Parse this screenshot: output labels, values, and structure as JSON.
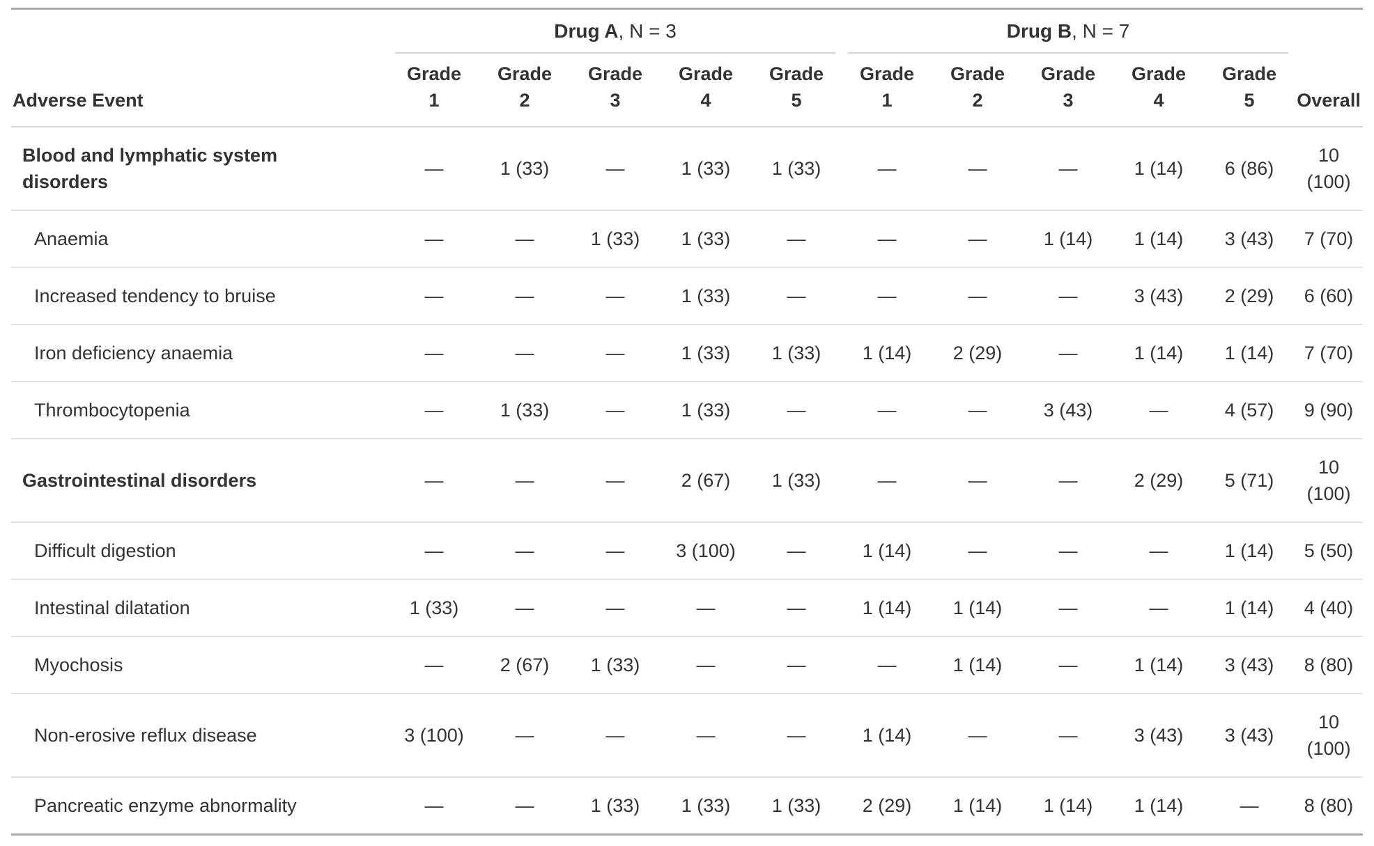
{
  "table": {
    "header": {
      "stub_label": "Adverse Event",
      "overall_label": "Overall",
      "grade_word": "Grade",
      "grade_numbers": [
        "1",
        "2",
        "3",
        "4",
        "5",
        "1",
        "2",
        "3",
        "4",
        "5"
      ],
      "spanners": [
        {
          "name": "Drug A",
          "suffix": ", N = 3"
        },
        {
          "name": "Drug B",
          "suffix": ", N = 7"
        }
      ]
    },
    "empty_cell_symbol": "—",
    "rows": [
      {
        "label": "Blood and lymphatic system disorders",
        "group": true,
        "drug_a": [
          "—",
          "1 (33)",
          "—",
          "1 (33)",
          "1 (33)"
        ],
        "drug_b": [
          "—",
          "—",
          "—",
          "1 (14)",
          "6 (86)"
        ],
        "overall": "10 (100)"
      },
      {
        "label": "Anaemia",
        "group": false,
        "drug_a": [
          "—",
          "—",
          "1 (33)",
          "1 (33)",
          "—"
        ],
        "drug_b": [
          "—",
          "—",
          "1 (14)",
          "1 (14)",
          "3 (43)"
        ],
        "overall": "7 (70)"
      },
      {
        "label": "Increased tendency to bruise",
        "group": false,
        "drug_a": [
          "—",
          "—",
          "—",
          "1 (33)",
          "—"
        ],
        "drug_b": [
          "—",
          "—",
          "—",
          "3 (43)",
          "2 (29)"
        ],
        "overall": "6 (60)"
      },
      {
        "label": "Iron deficiency anaemia",
        "group": false,
        "drug_a": [
          "—",
          "—",
          "—",
          "1 (33)",
          "1 (33)"
        ],
        "drug_b": [
          "1 (14)",
          "2 (29)",
          "—",
          "1 (14)",
          "1 (14)"
        ],
        "overall": "7 (70)"
      },
      {
        "label": "Thrombocytopenia",
        "group": false,
        "drug_a": [
          "—",
          "1 (33)",
          "—",
          "1 (33)",
          "—"
        ],
        "drug_b": [
          "—",
          "—",
          "3 (43)",
          "—",
          "4 (57)"
        ],
        "overall": "9 (90)"
      },
      {
        "label": "Gastrointestinal disorders",
        "group": true,
        "drug_a": [
          "—",
          "—",
          "—",
          "2 (67)",
          "1 (33)"
        ],
        "drug_b": [
          "—",
          "—",
          "—",
          "2 (29)",
          "5 (71)"
        ],
        "overall": "10 (100)"
      },
      {
        "label": "Difficult digestion",
        "group": false,
        "drug_a": [
          "—",
          "—",
          "—",
          "3 (100)",
          "—"
        ],
        "drug_b": [
          "1 (14)",
          "—",
          "—",
          "—",
          "1 (14)"
        ],
        "overall": "5 (50)"
      },
      {
        "label": "Intestinal dilatation",
        "group": false,
        "drug_a": [
          "1 (33)",
          "—",
          "—",
          "—",
          "—"
        ],
        "drug_b": [
          "1 (14)",
          "1 (14)",
          "—",
          "—",
          "1 (14)"
        ],
        "overall": "4 (40)"
      },
      {
        "label": "Myochosis",
        "group": false,
        "drug_a": [
          "—",
          "2 (67)",
          "1 (33)",
          "—",
          "—"
        ],
        "drug_b": [
          "—",
          "1 (14)",
          "—",
          "1 (14)",
          "3 (43)"
        ],
        "overall": "8 (80)"
      },
      {
        "label": "Non-erosive reflux disease",
        "group": false,
        "drug_a": [
          "3 (100)",
          "—",
          "—",
          "—",
          "—"
        ],
        "drug_b": [
          "1 (14)",
          "—",
          "—",
          "3 (43)",
          "3 (43)"
        ],
        "overall": "10 (100)"
      },
      {
        "label": "Pancreatic enzyme abnormality",
        "group": false,
        "drug_a": [
          "—",
          "—",
          "1 (33)",
          "1 (33)",
          "1 (33)"
        ],
        "drug_b": [
          "2 (29)",
          "1 (14)",
          "1 (14)",
          "1 (14)",
          "—"
        ],
        "overall": "8 (80)"
      }
    ]
  },
  "colors": {
    "text": "#333333",
    "table_border": "#a8a8a8",
    "header_rule": "#d3d3d3",
    "row_divider": "#e2e2e2",
    "background": "#ffffff"
  },
  "chart_data": {
    "type": "table",
    "title": "",
    "row_header": "Adverse Event",
    "column_groups": [
      {
        "label": "Drug A, N = 3",
        "columns": [
          "Grade 1",
          "Grade 2",
          "Grade 3",
          "Grade 4",
          "Grade 5"
        ]
      },
      {
        "label": "Drug B, N = 7",
        "columns": [
          "Grade 1",
          "Grade 2",
          "Grade 3",
          "Grade 4",
          "Grade 5"
        ]
      }
    ],
    "overall_column": "Overall",
    "rows": [
      [
        "Blood and lymphatic system disorders",
        "—",
        "1 (33)",
        "—",
        "1 (33)",
        "1 (33)",
        "—",
        "—",
        "—",
        "1 (14)",
        "6 (86)",
        "10 (100)"
      ],
      [
        "Anaemia",
        "—",
        "—",
        "1 (33)",
        "1 (33)",
        "—",
        "—",
        "—",
        "1 (14)",
        "1 (14)",
        "3 (43)",
        "7 (70)"
      ],
      [
        "Increased tendency to bruise",
        "—",
        "—",
        "—",
        "1 (33)",
        "—",
        "—",
        "—",
        "—",
        "3 (43)",
        "2 (29)",
        "6 (60)"
      ],
      [
        "Iron deficiency anaemia",
        "—",
        "—",
        "—",
        "1 (33)",
        "1 (33)",
        "1 (14)",
        "2 (29)",
        "—",
        "1 (14)",
        "1 (14)",
        "7 (70)"
      ],
      [
        "Thrombocytopenia",
        "—",
        "1 (33)",
        "—",
        "1 (33)",
        "—",
        "—",
        "—",
        "3 (43)",
        "—",
        "4 (57)",
        "9 (90)"
      ],
      [
        "Gastrointestinal disorders",
        "—",
        "—",
        "—",
        "2 (67)",
        "1 (33)",
        "—",
        "—",
        "—",
        "2 (29)",
        "5 (71)",
        "10 (100)"
      ],
      [
        "Difficult digestion",
        "—",
        "—",
        "—",
        "3 (100)",
        "—",
        "1 (14)",
        "—",
        "—",
        "—",
        "1 (14)",
        "5 (50)"
      ],
      [
        "Intestinal dilatation",
        "1 (33)",
        "—",
        "—",
        "—",
        "—",
        "1 (14)",
        "1 (14)",
        "—",
        "—",
        "1 (14)",
        "4 (40)"
      ],
      [
        "Myochosis",
        "—",
        "2 (67)",
        "1 (33)",
        "—",
        "—",
        "—",
        "1 (14)",
        "—",
        "1 (14)",
        "3 (43)",
        "8 (80)"
      ],
      [
        "Non-erosive reflux disease",
        "3 (100)",
        "—",
        "—",
        "—",
        "—",
        "1 (14)",
        "—",
        "—",
        "3 (43)",
        "3 (43)",
        "10 (100)"
      ],
      [
        "Pancreatic enzyme abnormality",
        "—",
        "—",
        "1 (33)",
        "1 (33)",
        "1 (33)",
        "2 (29)",
        "1 (14)",
        "1 (14)",
        "1 (14)",
        "—",
        "8 (80)"
      ]
    ]
  }
}
